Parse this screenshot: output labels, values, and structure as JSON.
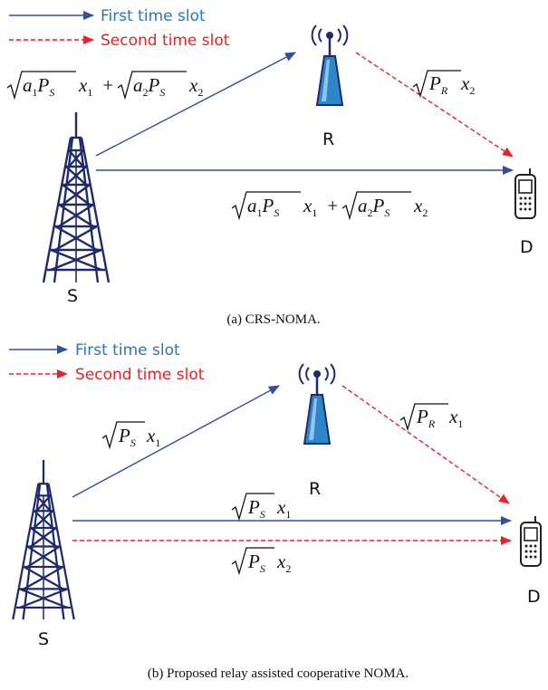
{
  "colors": {
    "first_slot": "#2F4F9F",
    "second_slot": "#E5232A",
    "legend_first_text": "#2E75B6",
    "tower": "#1F2A6B",
    "relay_body": "#2E86C8",
    "text": "#111111"
  },
  "panel_a": {
    "legend": {
      "first_slot": "First time slot",
      "second_slot": "Second time slot"
    },
    "nodes": {
      "source": "S",
      "relay": "R",
      "destination": "D"
    },
    "caption": "(a) CRS-NOMA."
  },
  "panel_b": {
    "legend": {
      "first_slot": "First time slot",
      "second_slot": "Second time slot"
    },
    "nodes": {
      "source": "S",
      "relay": "R",
      "destination": "D"
    },
    "caption": "(b) Proposed relay assisted cooperative NOMA."
  },
  "icons": {
    "source": "transmission-tower-icon",
    "relay": "relay-antenna-icon",
    "destination": "mobile-phone-icon"
  }
}
